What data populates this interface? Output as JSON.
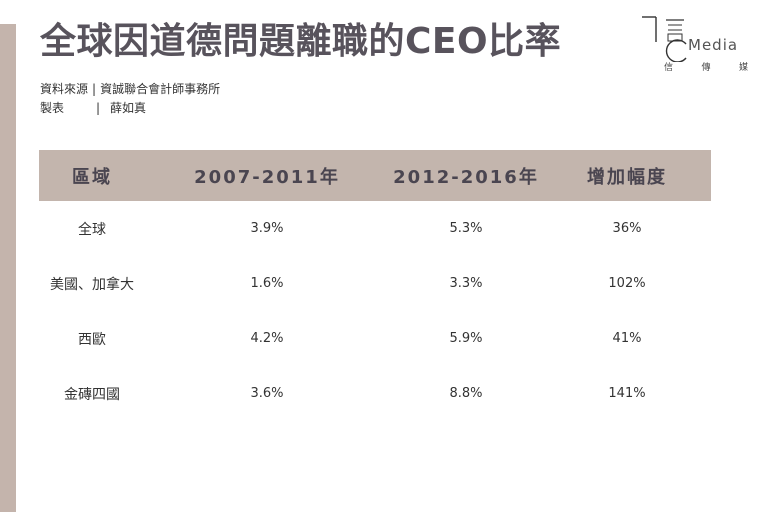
{
  "title": "全球因道德問題離職的CEO比率",
  "logo": {
    "word": "Media",
    "sub": [
      "信",
      "傳",
      "媒"
    ]
  },
  "source": {
    "label": "資料來源",
    "separator": "|",
    "value": "資誠聯合會計師事務所",
    "maker_label": "製表",
    "maker_value": "薛如真"
  },
  "chart_data": {
    "type": "table",
    "columns": [
      "區域",
      "2007-2011年",
      "2012-2016年",
      "增加幅度"
    ],
    "rows": [
      [
        "全球",
        "3.9%",
        "5.3%",
        "36%"
      ],
      [
        "美國、加拿大",
        "1.6%",
        "3.3%",
        "102%"
      ],
      [
        "西歐",
        "4.2%",
        "5.9%",
        "41%"
      ],
      [
        "金磚四國",
        "3.6%",
        "8.8%",
        "141%"
      ]
    ]
  },
  "colors": {
    "accent": "#c3b5ad",
    "title": "#58535c"
  }
}
